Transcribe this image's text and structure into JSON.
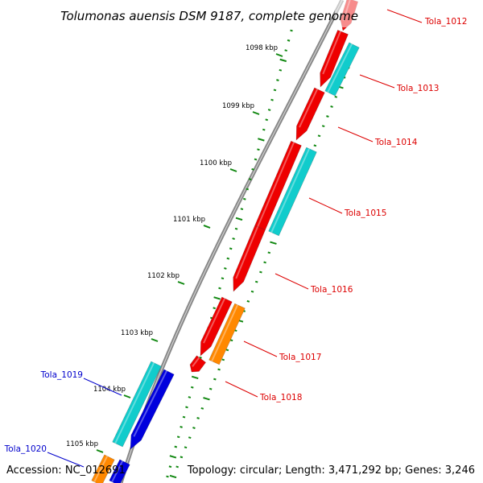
{
  "title": "Tolumonas auensis DSM 9187, complete genome",
  "footer": {
    "accession": "Accession: NC_012691",
    "topology": "Topology: circular; Length: 3,471,292 bp; Genes: 3,246"
  },
  "colors": {
    "forward_cds": "#ee0000",
    "reverse_cds": "#11cccc",
    "orange_cds": "#ff8800",
    "blue_cds": "#0000dd",
    "backbone": "#888888",
    "ticks": "#118811",
    "label_red": "#dd0000",
    "label_blue": "#0000cc"
  },
  "kbp_ticks": [
    "1098 kbp",
    "1099 kbp",
    "1100 kbp",
    "1101 kbp",
    "1102 kbp",
    "1103 kbp",
    "1104 kbp",
    "1105 kbp"
  ],
  "genes": [
    {
      "label": "Tola_1012",
      "color": "label_red"
    },
    {
      "label": "Tola_1013",
      "color": "label_red"
    },
    {
      "label": "Tola_1014",
      "color": "label_red"
    },
    {
      "label": "Tola_1015",
      "color": "label_red"
    },
    {
      "label": "Tola_1016",
      "color": "label_red"
    },
    {
      "label": "Tola_1017",
      "color": "label_red"
    },
    {
      "label": "Tola_1018",
      "color": "label_red"
    },
    {
      "label": "Tola_1019",
      "color": "label_blue"
    },
    {
      "label": "Tola_1020",
      "color": "label_blue"
    }
  ]
}
